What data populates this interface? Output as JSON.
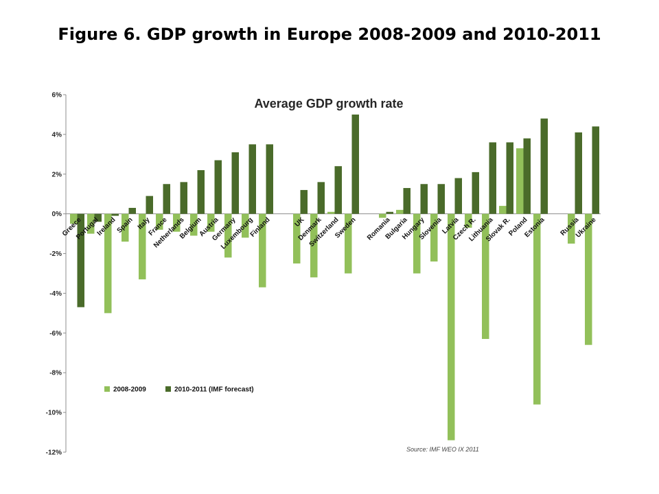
{
  "figure_title": "Figure 6. GDP growth in Europe 2008-2009 and 2010-2011",
  "chart_data": {
    "type": "bar",
    "title": "Average GDP growth rate",
    "xlabel": "",
    "ylabel": "",
    "ylim": [
      -12,
      6
    ],
    "yticks": [
      -12,
      -10,
      -8,
      -6,
      -4,
      -2,
      0,
      2,
      4,
      6
    ],
    "yticks_labels": [
      "-12%",
      "-10%",
      "-8%",
      "-6%",
      "-4%",
      "-2%",
      "0%",
      "2%",
      "4%",
      "6%"
    ],
    "grid": false,
    "legend_position": "bottom-left",
    "groups": [
      [
        "Greece",
        "Portugal",
        "Ireland",
        "Spain",
        "Italy",
        "France",
        "Netherlands",
        "Belgium",
        "Austria",
        "Germany",
        "Luxembourg",
        "Finland"
      ],
      [
        "UK",
        "Denmark",
        "Switzerland",
        "Sweden"
      ],
      [
        "Romania",
        "Bulgaria",
        "Hungary",
        "Slovenia",
        "Latvia",
        "Czech R.",
        "Lithuania",
        "Slovak R.",
        "Poland",
        "Estonia"
      ],
      [
        "Russia",
        "Ukraine"
      ]
    ],
    "categories": [
      "Greece",
      "Portugal",
      "Ireland",
      "Spain",
      "Italy",
      "France",
      "Netherlands",
      "Belgium",
      "Austria",
      "Germany",
      "Luxembourg",
      "Finland",
      "UK",
      "Denmark",
      "Switzerland",
      "Sweden",
      "Romania",
      "Bulgaria",
      "Hungary",
      "Slovenia",
      "Latvia",
      "Czech R.",
      "Lithuania",
      "Slovak R.",
      "Poland",
      "Estonia",
      "Russia",
      "Ukraine"
    ],
    "series": [
      {
        "name": "2008-2009",
        "color": "#92c05a",
        "values": [
          -0.5,
          -1.0,
          -5.0,
          -1.4,
          -3.3,
          -0.8,
          -0.9,
          -1.1,
          -0.9,
          -2.2,
          -1.2,
          -3.7,
          -2.5,
          -3.2,
          0.1,
          -3.0,
          -0.2,
          0.2,
          -3.0,
          -2.4,
          -11.4,
          -0.7,
          -6.3,
          0.4,
          3.3,
          -9.6,
          -1.5,
          -6.6
        ]
      },
      {
        "name": "2010-2011 (IMF forecast)",
        "color": "#4a6b2a",
        "values": [
          -4.7,
          -0.4,
          -0.1,
          0.3,
          0.9,
          1.5,
          1.6,
          2.2,
          2.7,
          3.1,
          3.5,
          3.5,
          1.2,
          1.6,
          2.4,
          5.0,
          0.1,
          1.3,
          1.5,
          1.5,
          1.8,
          2.1,
          3.6,
          3.6,
          3.8,
          4.8,
          4.1,
          4.4
        ]
      }
    ],
    "annotations": [
      "Source: IMF WEO IX 2011"
    ]
  }
}
